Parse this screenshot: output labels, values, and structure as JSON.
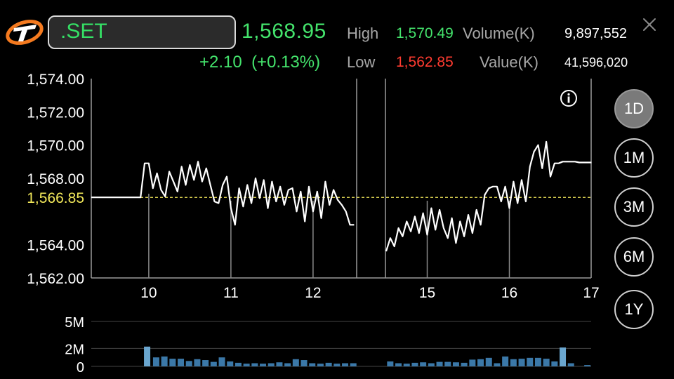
{
  "header": {
    "symbol": ".SET",
    "last_price": "1,568.95",
    "change": "+2.10  (+0.13%)",
    "high_label": "High",
    "high_value": "1,570.49",
    "low_label": "Low",
    "low_value": "1,562.85",
    "volume_label": "Volume(K)",
    "volume_value": "9,897,552",
    "value_label": "Value(K)",
    "value_value": "41,596,020"
  },
  "icons": {
    "logo": "brand-logo-icon",
    "close": "close-icon",
    "info": "info-icon"
  },
  "periods": [
    {
      "label": "1D",
      "active": true
    },
    {
      "label": "1M",
      "active": false
    },
    {
      "label": "3M",
      "active": false
    },
    {
      "label": "6M",
      "active": false
    },
    {
      "label": "1Y",
      "active": false
    }
  ],
  "colors": {
    "up": "#44e36c",
    "down": "#ff3b30",
    "line": "#ffffff",
    "reference": "#f2e85a",
    "volume_bar": "#3b78a8",
    "volume_bar_highlight": "#6aa6cf"
  },
  "chart_data": [
    {
      "type": "line",
      "title": "",
      "xlabel": "",
      "ylabel": "",
      "x_ticks": [
        "10",
        "11",
        "12",
        "15",
        "16",
        "17"
      ],
      "y_ticks": [
        "1,574.00",
        "1,572.00",
        "1,570.00",
        "1,568.00",
        "1,564.00",
        "1,562.00"
      ],
      "ylim": [
        1562,
        1574
      ],
      "reference_line": {
        "label": "1,566.85",
        "value": 1566.85
      },
      "series": [
        {
          "session": "morning",
          "x": [
            9.3,
            9.9,
            9.95,
            10.0,
            10.05,
            10.1,
            10.15,
            10.2,
            10.25,
            10.3,
            10.35,
            10.4,
            10.45,
            10.5,
            10.55,
            10.6,
            10.65,
            10.7,
            10.75,
            10.8,
            10.85,
            10.9,
            10.95,
            11.0,
            11.05,
            11.1,
            11.15,
            11.2,
            11.25,
            11.3,
            11.35,
            11.4,
            11.45,
            11.5,
            11.55,
            11.6,
            11.65,
            11.7,
            11.75,
            11.8,
            11.85,
            11.9,
            11.95,
            12.0,
            12.05,
            12.1,
            12.15,
            12.2,
            12.25,
            12.3,
            12.35,
            12.4,
            12.45,
            12.5
          ],
          "values": [
            1566.85,
            1566.85,
            1568.9,
            1568.9,
            1567.4,
            1568.3,
            1567.3,
            1566.9,
            1568.4,
            1567.8,
            1567.2,
            1568.7,
            1567.6,
            1568.8,
            1567.9,
            1569.0,
            1567.8,
            1568.6,
            1567.6,
            1566.6,
            1566.5,
            1567.6,
            1568.1,
            1566.2,
            1565.2,
            1567.4,
            1566.3,
            1567.6,
            1566.5,
            1568.0,
            1566.8,
            1567.9,
            1566.2,
            1567.8,
            1566.6,
            1567.5,
            1566.4,
            1567.3,
            1567.4,
            1566.0,
            1567.2,
            1565.4,
            1567.5,
            1566.0,
            1567.2,
            1565.6,
            1567.8,
            1566.4,
            1567.3,
            1566.7,
            1566.4,
            1566.0,
            1565.2,
            1565.2
          ]
        },
        {
          "session": "afternoon",
          "x": [
            14.5,
            14.55,
            14.6,
            14.65,
            14.7,
            14.75,
            14.8,
            14.85,
            14.9,
            14.95,
            15.0,
            15.05,
            15.1,
            15.15,
            15.2,
            15.25,
            15.3,
            15.35,
            15.4,
            15.45,
            15.5,
            15.55,
            15.6,
            15.65,
            15.7,
            15.75,
            15.8,
            15.85,
            15.9,
            15.95,
            16.0,
            16.05,
            16.1,
            16.15,
            16.2,
            16.25,
            16.3,
            16.35,
            16.4,
            16.45,
            16.5,
            16.55,
            16.6,
            16.65,
            16.7,
            16.75,
            16.8,
            16.85,
            16.9,
            16.95,
            17.0
          ],
          "values": [
            1563.6,
            1564.4,
            1563.9,
            1565.0,
            1564.5,
            1565.4,
            1564.8,
            1565.7,
            1564.7,
            1565.9,
            1564.6,
            1566.2,
            1564.9,
            1566.1,
            1565.0,
            1564.4,
            1565.6,
            1564.1,
            1565.4,
            1564.5,
            1565.8,
            1564.7,
            1566.1,
            1565.2,
            1567.0,
            1567.4,
            1567.5,
            1567.5,
            1566.6,
            1567.5,
            1566.2,
            1567.8,
            1566.5,
            1567.9,
            1566.6,
            1568.7,
            1569.6,
            1570.0,
            1568.6,
            1570.2,
            1568.1,
            1568.9,
            1568.9,
            1569.0,
            1569.0,
            1569.0,
            1569.0,
            1568.95,
            1568.95,
            1568.95,
            1568.95
          ]
        }
      ]
    },
    {
      "type": "bar",
      "title": "",
      "y_ticks": [
        "5M",
        "2M",
        "0"
      ],
      "ylim": [
        0,
        5
      ],
      "unit": "M",
      "bars": [
        {
          "x": 9.98,
          "v": 2.2
        },
        {
          "x": 10.09,
          "v": 1.0
        },
        {
          "x": 10.19,
          "v": 1.1
        },
        {
          "x": 10.29,
          "v": 0.85
        },
        {
          "x": 10.39,
          "v": 0.85
        },
        {
          "x": 10.49,
          "v": 0.6
        },
        {
          "x": 10.59,
          "v": 0.8
        },
        {
          "x": 10.69,
          "v": 0.7
        },
        {
          "x": 10.79,
          "v": 0.5
        },
        {
          "x": 10.89,
          "v": 1.0
        },
        {
          "x": 10.99,
          "v": 0.55
        },
        {
          "x": 11.09,
          "v": 0.4
        },
        {
          "x": 11.19,
          "v": 0.3
        },
        {
          "x": 11.29,
          "v": 0.35
        },
        {
          "x": 11.39,
          "v": 0.3
        },
        {
          "x": 11.49,
          "v": 0.35
        },
        {
          "x": 11.59,
          "v": 0.45
        },
        {
          "x": 11.69,
          "v": 0.35
        },
        {
          "x": 11.79,
          "v": 0.8
        },
        {
          "x": 11.89,
          "v": 0.7
        },
        {
          "x": 11.99,
          "v": 0.35
        },
        {
          "x": 12.09,
          "v": 0.3
        },
        {
          "x": 12.19,
          "v": 0.4
        },
        {
          "x": 12.29,
          "v": 0.3
        },
        {
          "x": 12.39,
          "v": 0.35
        },
        {
          "x": 12.49,
          "v": 0.35
        },
        {
          "x": 14.55,
          "v": 0.55
        },
        {
          "x": 14.65,
          "v": 0.35
        },
        {
          "x": 14.75,
          "v": 0.3
        },
        {
          "x": 14.85,
          "v": 0.4
        },
        {
          "x": 14.95,
          "v": 0.45
        },
        {
          "x": 15.05,
          "v": 0.35
        },
        {
          "x": 15.15,
          "v": 0.5
        },
        {
          "x": 15.25,
          "v": 0.5
        },
        {
          "x": 15.35,
          "v": 0.45
        },
        {
          "x": 15.45,
          "v": 0.4
        },
        {
          "x": 15.55,
          "v": 0.75
        },
        {
          "x": 15.65,
          "v": 0.8
        },
        {
          "x": 15.75,
          "v": 0.95
        },
        {
          "x": 15.85,
          "v": 0.35
        },
        {
          "x": 15.95,
          "v": 1.1
        },
        {
          "x": 16.05,
          "v": 0.8
        },
        {
          "x": 16.15,
          "v": 0.85
        },
        {
          "x": 16.25,
          "v": 0.95
        },
        {
          "x": 16.35,
          "v": 0.95
        },
        {
          "x": 16.45,
          "v": 0.85
        },
        {
          "x": 16.55,
          "v": 0.55
        },
        {
          "x": 16.65,
          "v": 2.1
        },
        {
          "x": 16.75,
          "v": 0.35
        },
        {
          "x": 16.95,
          "v": 0.15
        }
      ]
    }
  ]
}
